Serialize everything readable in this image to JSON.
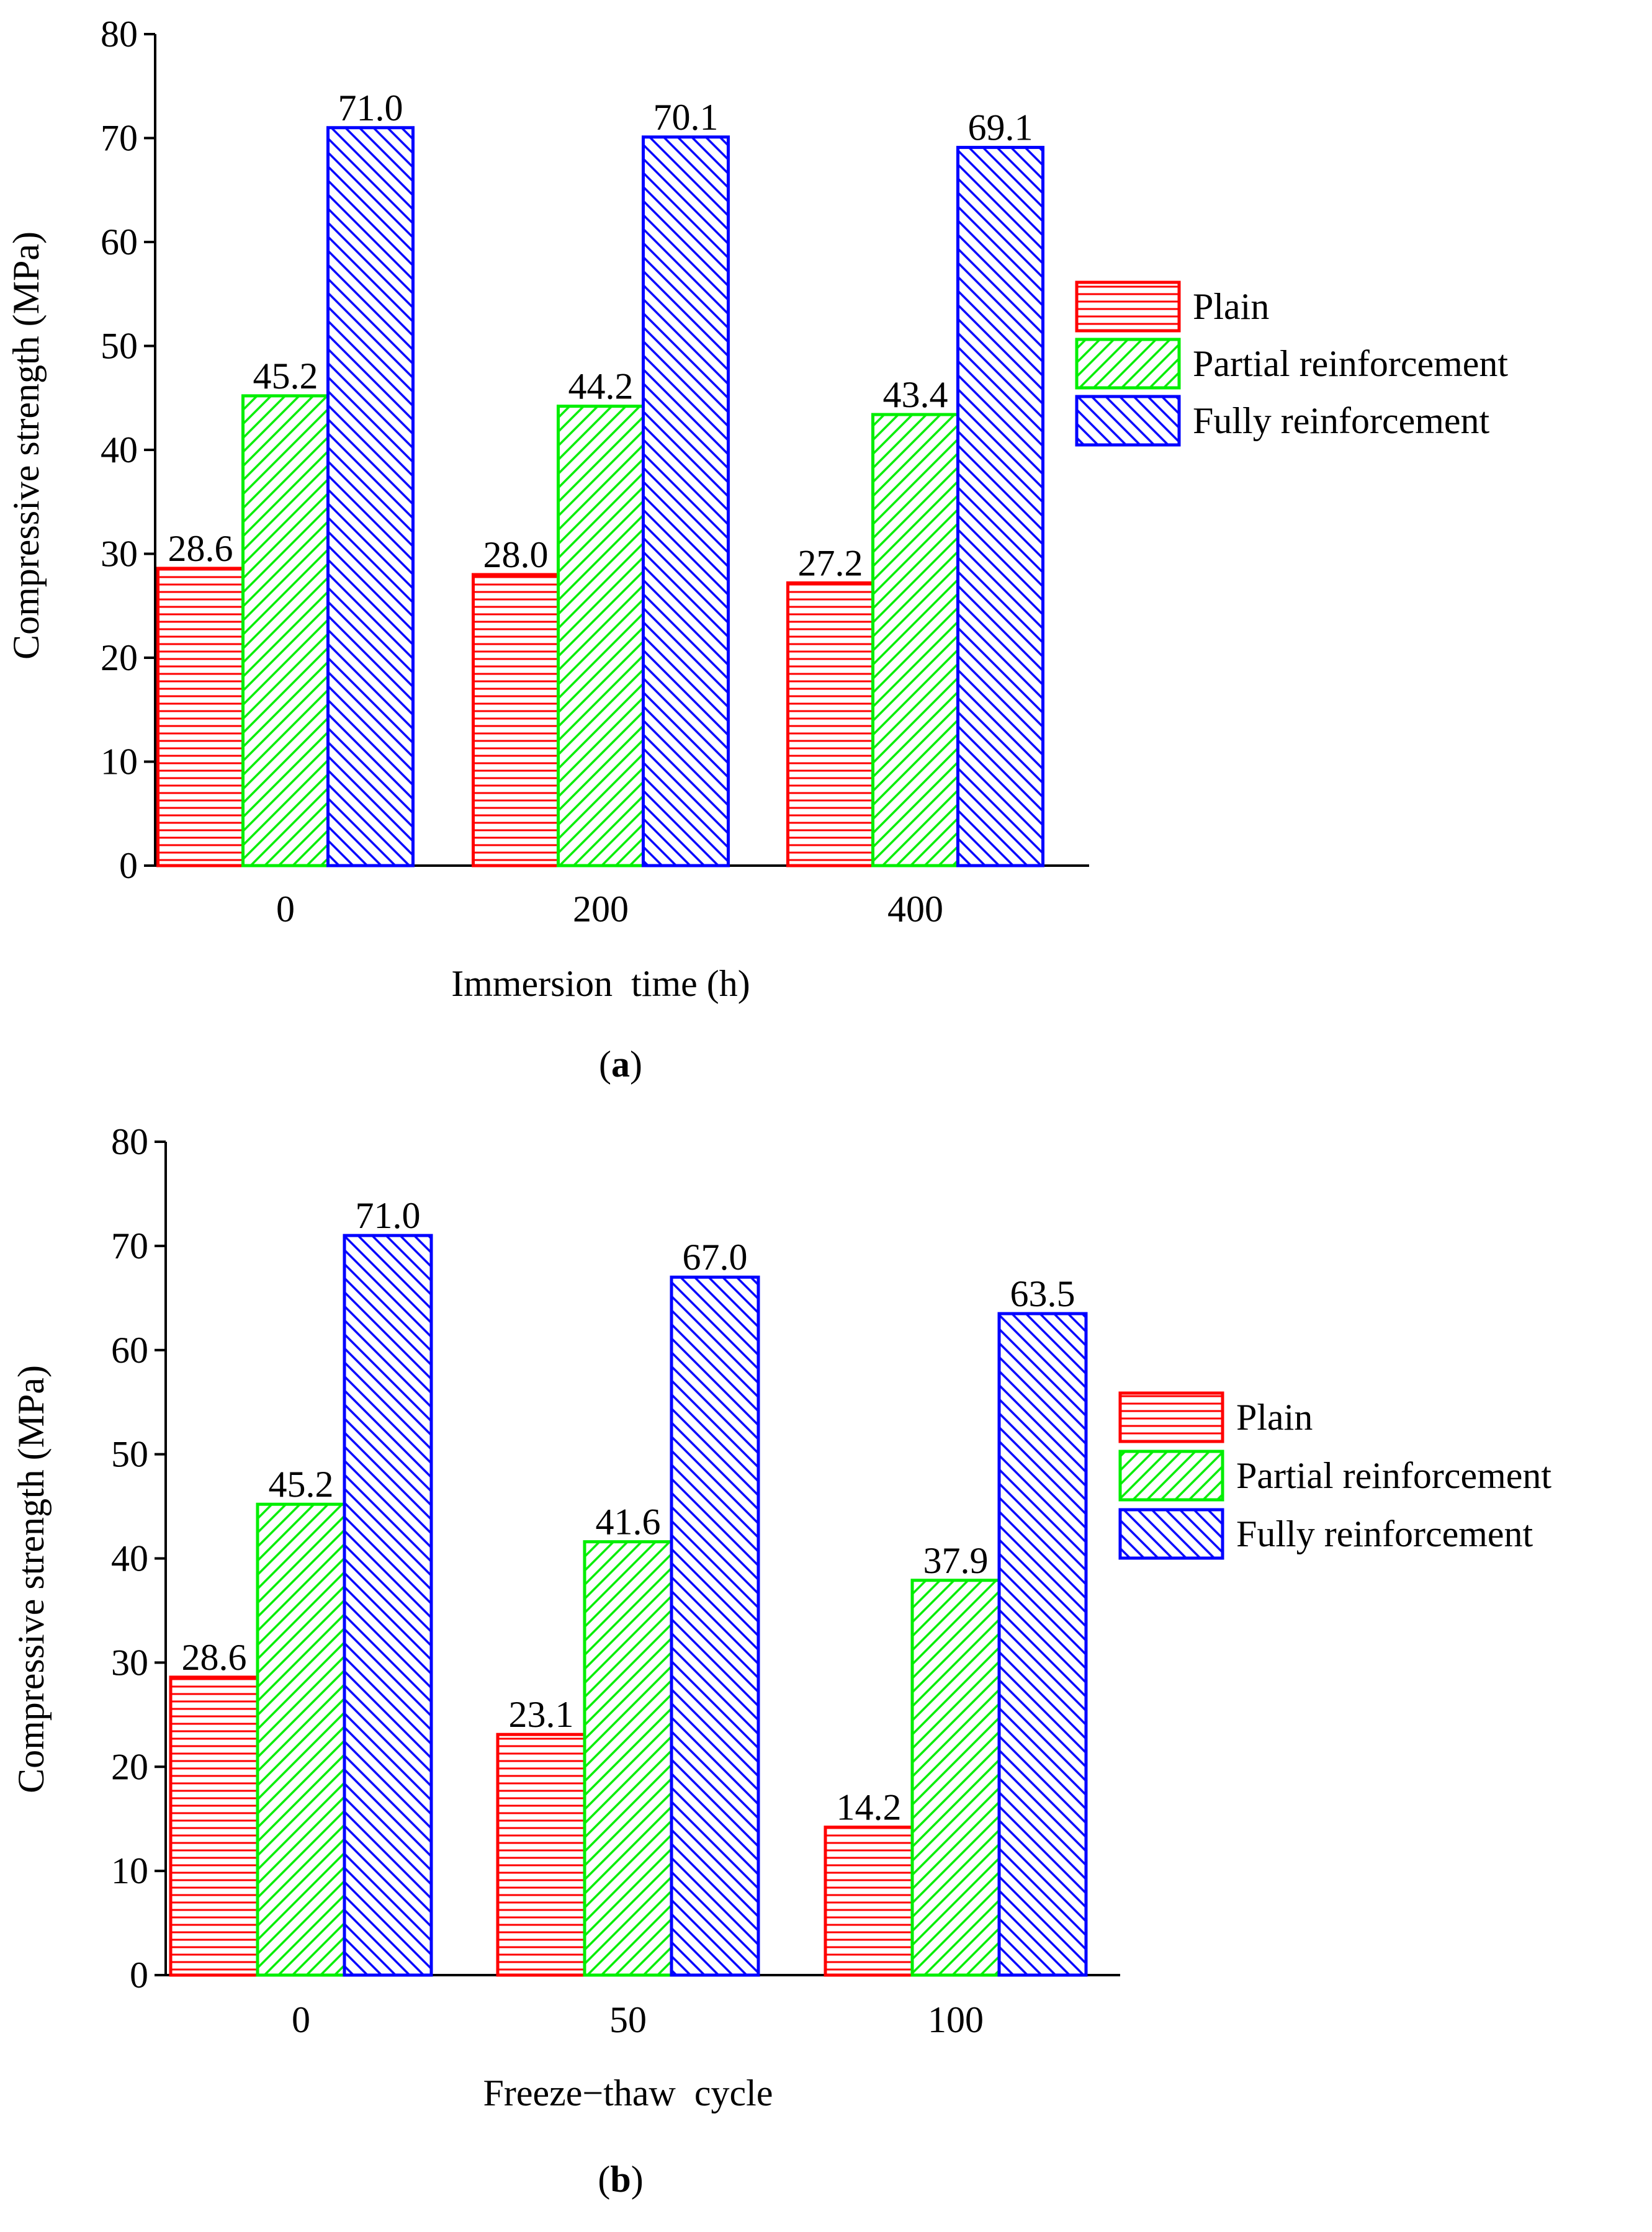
{
  "colors": {
    "plain": "#ff0000",
    "partial": "#00ee00",
    "fully": "#0000ff",
    "axis": "#000000"
  },
  "chart_data": [
    {
      "type": "bar",
      "panel_label": "a",
      "title": "",
      "xlabel": "Immersion  time (h)",
      "ylabel": "Compressive  strength (MPa)",
      "categories": [
        "0",
        "200",
        "400"
      ],
      "ylim": [
        0,
        80
      ],
      "yticks": [
        0,
        10,
        20,
        30,
        40,
        50,
        60,
        70,
        80
      ],
      "legend_position": "right",
      "series": [
        {
          "name": "Plain",
          "values": [
            28.6,
            28.0,
            27.2
          ],
          "labels": [
            "28.6",
            "28.0",
            "27.2"
          ]
        },
        {
          "name": "Partial reinforcement",
          "values": [
            45.2,
            44.2,
            43.4
          ],
          "labels": [
            "45.2",
            "44.2",
            "43.4"
          ]
        },
        {
          "name": "Fully reinforcement",
          "values": [
            71.0,
            70.1,
            69.1
          ],
          "labels": [
            "71.0",
            "70.1",
            "69.1"
          ]
        }
      ]
    },
    {
      "type": "bar",
      "panel_label": "b",
      "title": "",
      "xlabel": "Freeze−thaw  cycle",
      "ylabel": "Compressive  strength (MPa)",
      "categories": [
        "0",
        "50",
        "100"
      ],
      "ylim": [
        0,
        80
      ],
      "yticks": [
        0,
        10,
        20,
        30,
        40,
        50,
        60,
        70,
        80
      ],
      "legend_position": "right",
      "series": [
        {
          "name": "Plain",
          "values": [
            28.6,
            23.1,
            14.2
          ],
          "labels": [
            "28.6",
            "23.1",
            "14.2"
          ]
        },
        {
          "name": "Partial reinforcement",
          "values": [
            45.2,
            41.6,
            37.9
          ],
          "labels": [
            "45.2",
            "41.6",
            "37.9"
          ]
        },
        {
          "name": "Fully reinforcement",
          "values": [
            71.0,
            67.0,
            63.5
          ],
          "labels": [
            "71.0",
            "67.0",
            "63.5"
          ]
        }
      ]
    }
  ]
}
